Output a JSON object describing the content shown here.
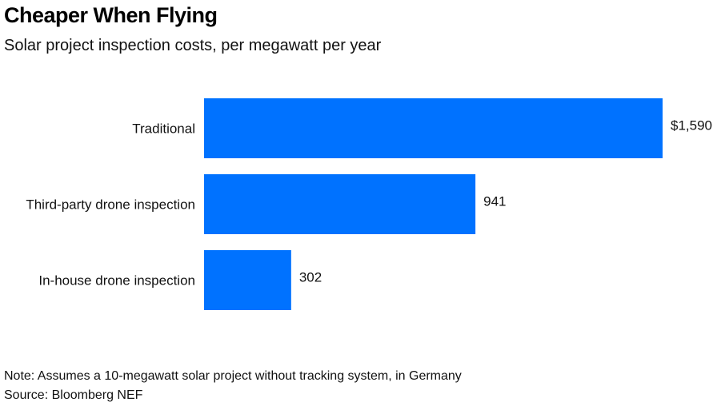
{
  "chart_data": {
    "type": "bar",
    "orientation": "horizontal",
    "title": "Cheaper When Flying",
    "subtitle": "Solar project inspection costs, per megawatt per year",
    "categories": [
      "Traditional",
      "Third-party drone inspection",
      "In-house drone inspection"
    ],
    "values": [
      1590,
      941,
      302
    ],
    "value_labels": [
      "$1,590",
      "941",
      "302"
    ],
    "xlabel": "",
    "ylabel": "",
    "xlim": [
      0,
      1590
    ],
    "grid": false,
    "bar_color": "#0072FF",
    "note": "Note: Assumes a 10-megawatt solar project without tracking system, in Germany",
    "source": "Source: Bloomberg NEF"
  }
}
